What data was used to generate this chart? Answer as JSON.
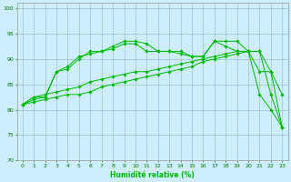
{
  "xlabel": "Humidité relative (%)",
  "background_color": "#cceeff",
  "grid_color": "#aacccc",
  "line_color": "#00bb00",
  "xlim": [
    -0.5,
    23.5
  ],
  "ylim": [
    70,
    101
  ],
  "yticks": [
    70,
    75,
    80,
    85,
    90,
    95,
    100
  ],
  "xticks": [
    0,
    1,
    2,
    3,
    4,
    5,
    6,
    7,
    8,
    9,
    10,
    11,
    12,
    13,
    14,
    15,
    16,
    17,
    18,
    19,
    20,
    21,
    22,
    23
  ],
  "lines": [
    [
      81.0,
      82.5,
      82.5,
      87.5,
      88.5,
      90.5,
      91.0,
      91.5,
      92.5,
      93.5,
      93.5,
      93.0,
      91.5,
      91.5,
      91.5,
      90.5,
      90.5,
      93.5,
      92.5,
      91.5,
      91.5,
      87.5,
      87.5,
      76.5
    ],
    [
      81.0,
      82.0,
      82.5,
      87.5,
      88.0,
      90.0,
      91.5,
      91.5,
      92.0,
      93.0,
      93.0,
      91.5,
      91.5,
      91.5,
      91.0,
      90.5,
      90.5,
      93.5,
      93.5,
      93.5,
      91.5,
      91.5,
      83.0,
      76.5
    ],
    [
      81.0,
      82.5,
      83.0,
      83.5,
      84.0,
      84.5,
      85.5,
      86.0,
      86.5,
      87.0,
      87.5,
      87.5,
      88.0,
      88.5,
      89.0,
      89.5,
      90.0,
      90.5,
      91.0,
      91.5,
      91.5,
      91.5,
      87.5,
      83.0
    ],
    [
      81.0,
      81.5,
      82.0,
      82.5,
      83.0,
      83.0,
      83.5,
      84.5,
      85.0,
      85.5,
      86.0,
      86.5,
      87.0,
      87.5,
      88.0,
      88.5,
      89.5,
      90.0,
      90.5,
      91.0,
      91.5,
      83.0,
      80.0,
      76.5
    ]
  ]
}
